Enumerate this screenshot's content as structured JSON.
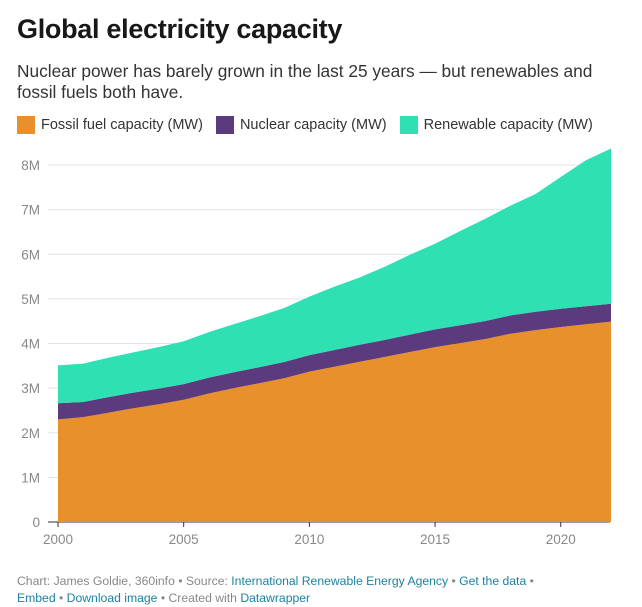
{
  "header": {
    "title": "Global electricity capacity",
    "subtitle": "Nuclear power has barely grown in the last 25 years — but renewables and fossil fuels both have."
  },
  "legend": [
    {
      "label": "Fossil fuel capacity (MW)",
      "color": "#e8902b"
    },
    {
      "label": "Nuclear capacity (MW)",
      "color": "#5b3a7e"
    },
    {
      "label": "Renewable capacity (MW)",
      "color": "#2ee0b2"
    }
  ],
  "footer": {
    "credit_prefix": "Chart: James Goldie, 360info • Source: ",
    "source_link": "International Renewable Energy Agency",
    "sep1": " • ",
    "get_data_link": "Get the data",
    "sep2": " •",
    "embed_link": "Embed",
    "sep3": " • ",
    "download_link": "Download image",
    "created_with": " • Created with ",
    "datawrapper_link": "Datawrapper"
  },
  "chart_data": {
    "type": "area",
    "stacked": true,
    "title": "Global electricity capacity",
    "x": [
      2000,
      2001,
      2002,
      2003,
      2004,
      2005,
      2006,
      2007,
      2008,
      2009,
      2010,
      2011,
      2012,
      2013,
      2014,
      2015,
      2016,
      2017,
      2018,
      2019,
      2020,
      2021,
      2022
    ],
    "series": [
      {
        "name": "Fossil fuel capacity (MW)",
        "color": "#e8902b",
        "values": [
          2300000,
          2350000,
          2450000,
          2550000,
          2640000,
          2740000,
          2880000,
          3000000,
          3110000,
          3220000,
          3370000,
          3480000,
          3590000,
          3700000,
          3810000,
          3920000,
          4010000,
          4100000,
          4220000,
          4300000,
          4370000,
          4430000,
          4490000
        ]
      },
      {
        "name": "Nuclear capacity (MW)",
        "color": "#5b3a7e",
        "values": [
          360000,
          340000,
          350000,
          350000,
          350000,
          350000,
          355000,
          355000,
          360000,
          365000,
          370000,
          375000,
          380000,
          380000,
          390000,
          395000,
          400000,
          405000,
          410000,
          410000,
          410000,
          405000,
          400000
        ]
      },
      {
        "name": "Renewable capacity (MW)",
        "color": "#2ee0b2",
        "values": [
          850000,
          860000,
          880000,
          900000,
          930000,
          960000,
          1020000,
          1080000,
          1140000,
          1210000,
          1310000,
          1420000,
          1510000,
          1640000,
          1790000,
          1920000,
          2110000,
          2290000,
          2460000,
          2640000,
          2950000,
          3270000,
          3480000
        ]
      }
    ],
    "ylim": [
      0,
      8400000
    ],
    "yticks": [
      0,
      1000000,
      2000000,
      3000000,
      4000000,
      5000000,
      6000000,
      7000000,
      8000000
    ],
    "ytick_labels": [
      "0",
      "1M",
      "2M",
      "3M",
      "4M",
      "5M",
      "6M",
      "7M",
      "8M"
    ],
    "xticks": [
      2000,
      2005,
      2010,
      2015,
      2020
    ],
    "xtick_labels": [
      "2000",
      "2005",
      "2010",
      "2015",
      "2020"
    ],
    "grid": true,
    "legend_position": "top"
  }
}
